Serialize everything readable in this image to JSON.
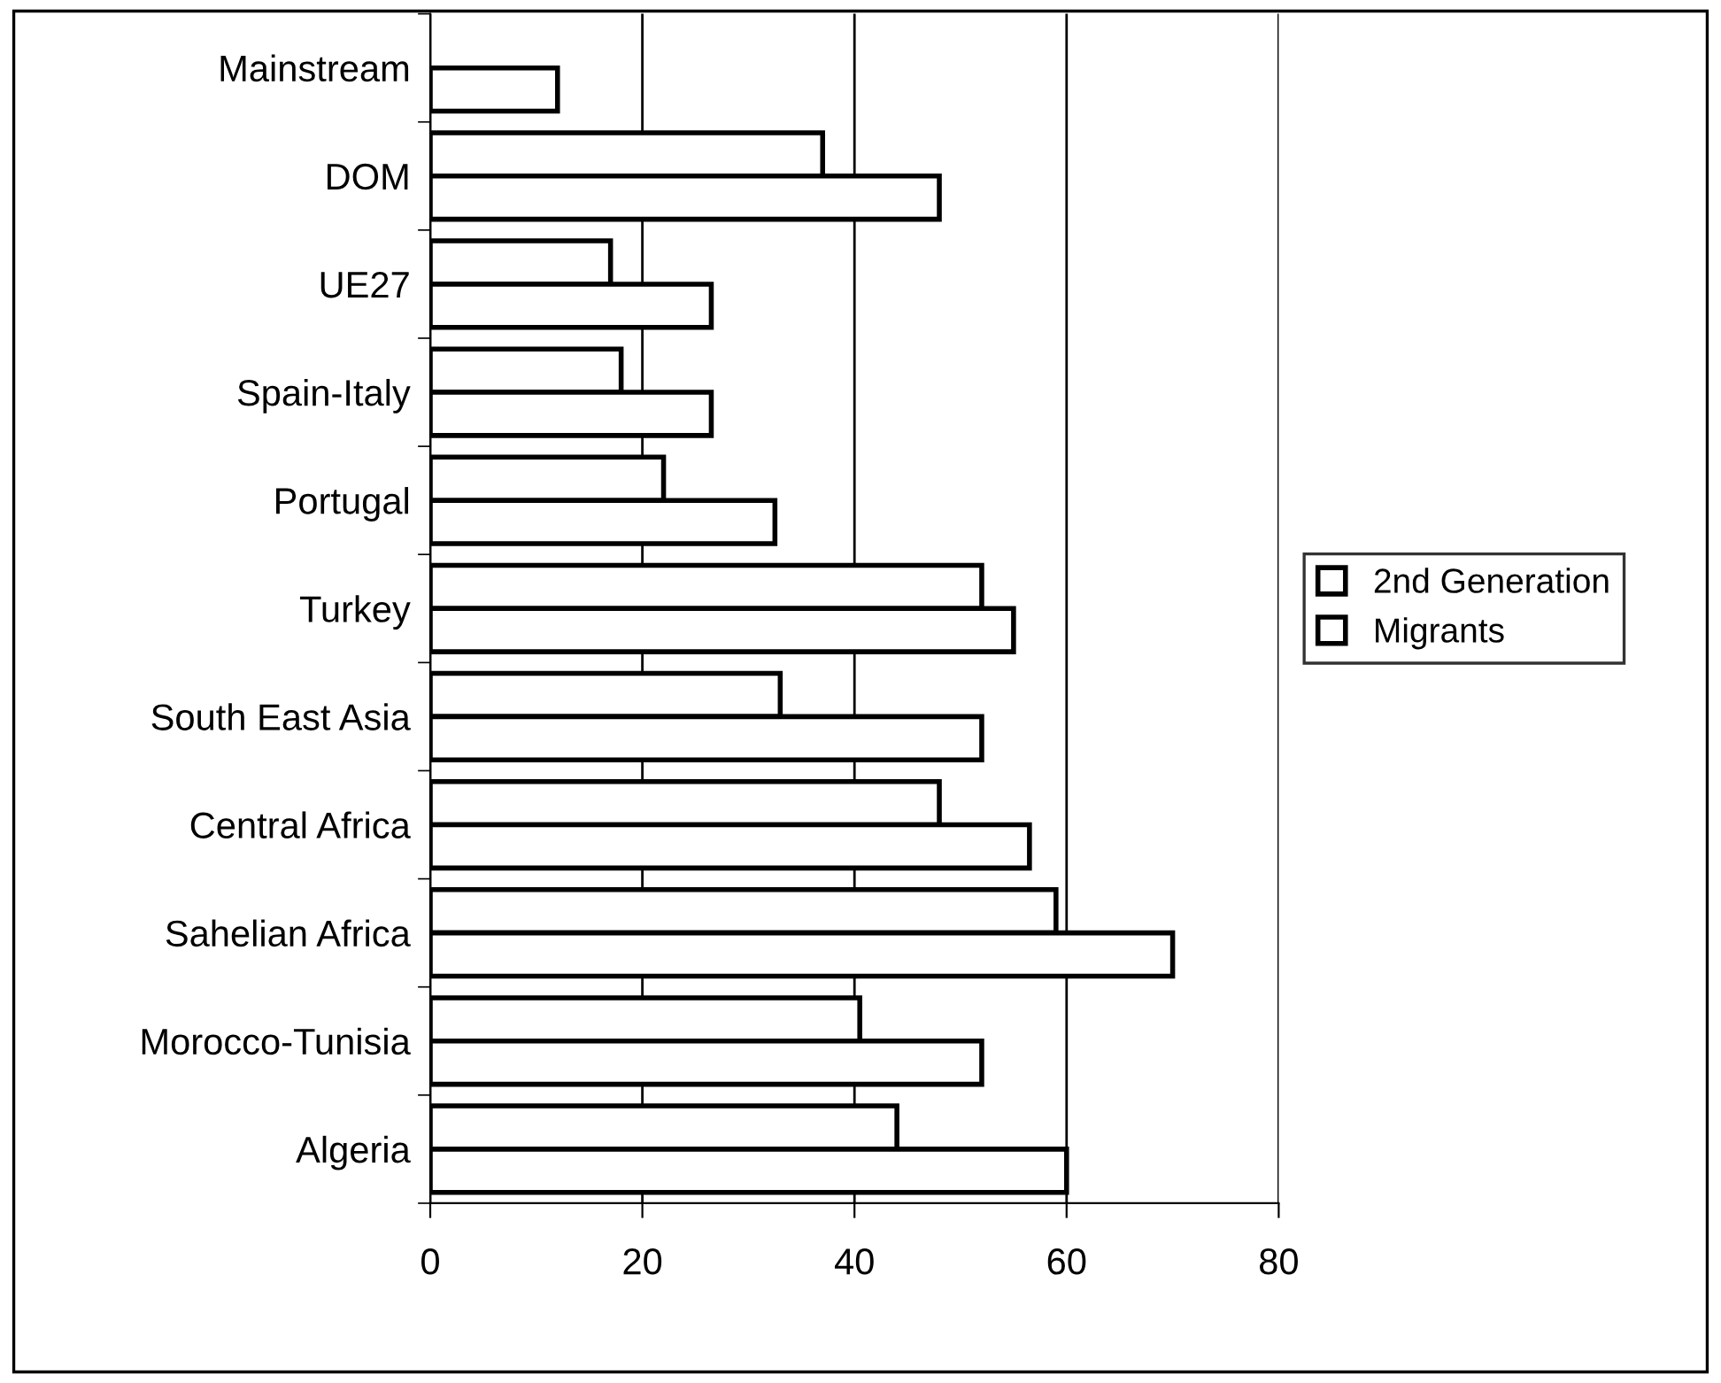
{
  "chart_data": {
    "type": "bar",
    "orientation": "horizontal",
    "categories": [
      "Mainstream",
      "DOM",
      "UE27",
      "Spain-Italy",
      "Portugal",
      "Turkey",
      "South East Asia",
      "Central Africa",
      "Sahelian Africa",
      "Morocco-Tunisia",
      "Algeria"
    ],
    "series": [
      {
        "name": "2nd Generation",
        "color": "#ffffff",
        "values": [
          null,
          37,
          17,
          18,
          22,
          52,
          33,
          48,
          59,
          40.5,
          44
        ]
      },
      {
        "name": "Migrants",
        "color": "#ffffff",
        "values": [
          12,
          48,
          26.5,
          26.5,
          32.5,
          55,
          52,
          56.5,
          70,
          52,
          60
        ]
      }
    ],
    "xlim": [
      0,
      80
    ],
    "xticks": [
      0,
      20,
      40,
      60,
      80
    ],
    "grid": "x",
    "legend": "right"
  }
}
